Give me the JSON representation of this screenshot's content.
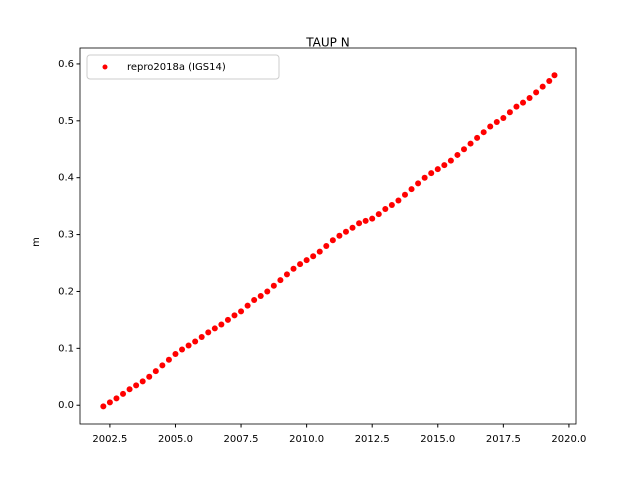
{
  "chart_data": {
    "type": "scatter",
    "title": "TAUP N",
    "y_label": "m",
    "x": [
      2002.25,
      2002.5,
      2002.75,
      2003,
      2003.25,
      2003.5,
      2003.75,
      2004,
      2004.25,
      2004.5,
      2004.75,
      2005,
      2005.25,
      2005.5,
      2005.75,
      2006,
      2006.25,
      2006.5,
      2006.75,
      2007,
      2007.25,
      2007.5,
      2007.75,
      2008,
      2008.25,
      2008.5,
      2008.75,
      2009,
      2009.25,
      2009.5,
      2009.75,
      2010,
      2010.25,
      2010.5,
      2010.75,
      2011,
      2011.25,
      2011.5,
      2011.75,
      2012,
      2012.25,
      2012.5,
      2012.75,
      2013,
      2013.25,
      2013.5,
      2013.75,
      2014,
      2014.25,
      2014.5,
      2014.75,
      2015,
      2015.25,
      2015.5,
      2015.75,
      2016,
      2016.25,
      2016.5,
      2016.75,
      2017,
      2017.25,
      2017.5,
      2017.75,
      2018,
      2018.25,
      2018.5,
      2018.75,
      2019,
      2019.25,
      2019.45
    ],
    "series": [
      {
        "name": "repro2018a (IGS14)",
        "color": "#ff0000",
        "values": [
          -0.002,
          0.005,
          0.012,
          0.02,
          0.028,
          0.035,
          0.042,
          0.05,
          0.06,
          0.07,
          0.08,
          0.09,
          0.098,
          0.105,
          0.112,
          0.12,
          0.128,
          0.135,
          0.142,
          0.15,
          0.158,
          0.165,
          0.175,
          0.185,
          0.192,
          0.2,
          0.21,
          0.22,
          0.23,
          0.24,
          0.248,
          0.255,
          0.262,
          0.27,
          0.28,
          0.29,
          0.298,
          0.305,
          0.312,
          0.32,
          0.324,
          0.328,
          0.336,
          0.345,
          0.352,
          0.36,
          0.37,
          0.38,
          0.39,
          0.4,
          0.408,
          0.415,
          0.422,
          0.43,
          0.44,
          0.45,
          0.46,
          0.47,
          0.48,
          0.49,
          0.498,
          0.505,
          0.515,
          0.525,
          0.532,
          0.54,
          0.55,
          0.56,
          0.57,
          0.58
        ]
      }
    ],
    "xlim": [
      2001.36,
      2020.27
    ],
    "ylim": [
      -0.033,
      0.628
    ],
    "xticks": [
      2002.5,
      {
        "value": 2005,
        "label": "2005.0"
      },
      2007.5,
      {
        "value": 2010,
        "label": "2010.0"
      },
      2012.5,
      {
        "value": 2015,
        "label": "2015.0"
      },
      2017.5,
      {
        "value": 2020,
        "label": "2020.0"
      }
    ],
    "yticks": [
      {
        "value": 0,
        "label": "0.0"
      },
      0.1,
      0.2,
      0.3,
      0.4,
      0.5,
      0.6
    ],
    "legend": "upper left"
  }
}
